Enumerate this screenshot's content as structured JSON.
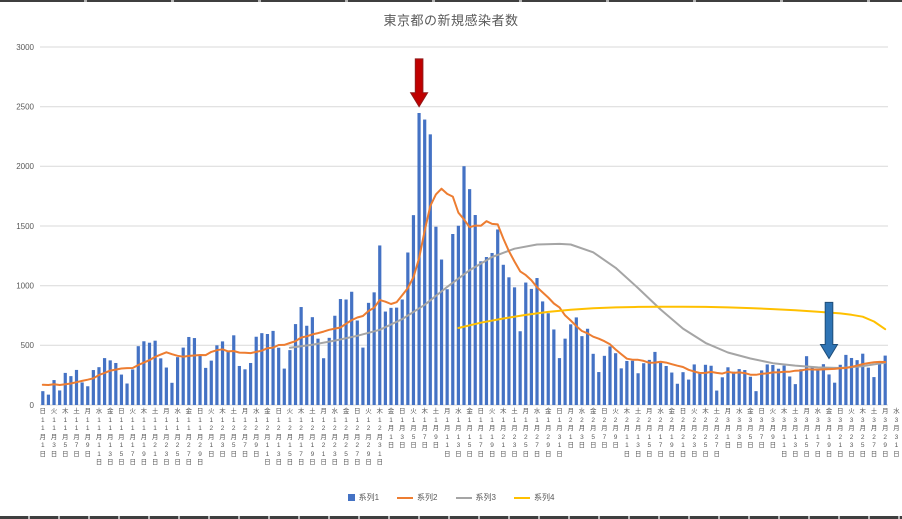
{
  "chart_data": {
    "type": "bar",
    "combo": "bar+line",
    "title": "東京都の新規感染者数",
    "xlabel": "",
    "ylabel": "",
    "ylim": [
      0,
      3000
    ],
    "y_ticks": [
      0,
      500,
      1000,
      1500,
      2000,
      2500,
      3000
    ],
    "gridline_color": "#D9D9D9",
    "axis_text_color": "#595959",
    "x_label_format": {
      "weekday_row": true,
      "month_suffix": "月",
      "day_suffix": "日",
      "label_every_days": 2
    },
    "x_labels": [
      [
        "日",
        11,
        1
      ],
      [
        "火",
        11,
        3
      ],
      [
        "木",
        11,
        5
      ],
      [
        "土",
        11,
        7
      ],
      [
        "月",
        11,
        9
      ],
      [
        "水",
        11,
        11
      ],
      [
        "金",
        11,
        13
      ],
      [
        "日",
        11,
        15
      ],
      [
        "火",
        11,
        17
      ],
      [
        "木",
        11,
        19
      ],
      [
        "土",
        11,
        21
      ],
      [
        "月",
        11,
        23
      ],
      [
        "水",
        11,
        25
      ],
      [
        "金",
        11,
        27
      ],
      [
        "日",
        11,
        29
      ],
      [
        "火",
        12,
        1
      ],
      [
        "木",
        12,
        3
      ],
      [
        "土",
        12,
        5
      ],
      [
        "月",
        12,
        7
      ],
      [
        "水",
        12,
        9
      ],
      [
        "金",
        12,
        11
      ],
      [
        "日",
        12,
        13
      ],
      [
        "火",
        12,
        15
      ],
      [
        "木",
        12,
        17
      ],
      [
        "土",
        12,
        19
      ],
      [
        "月",
        12,
        21
      ],
      [
        "水",
        12,
        23
      ],
      [
        "金",
        12,
        25
      ],
      [
        "日",
        12,
        27
      ],
      [
        "火",
        12,
        29
      ],
      [
        "木",
        12,
        31
      ],
      [
        "金",
        1,
        1
      ],
      [
        "日",
        1,
        3
      ],
      [
        "火",
        1,
        5
      ],
      [
        "木",
        1,
        7
      ],
      [
        "土",
        1,
        9
      ],
      [
        "月",
        1,
        11
      ],
      [
        "水",
        1,
        13
      ],
      [
        "金",
        1,
        15
      ],
      [
        "日",
        1,
        17
      ],
      [
        "火",
        1,
        19
      ],
      [
        "木",
        1,
        21
      ],
      [
        "土",
        1,
        23
      ],
      [
        "月",
        1,
        25
      ],
      [
        "水",
        1,
        27
      ],
      [
        "金",
        1,
        29
      ],
      [
        "日",
        1,
        31
      ],
      [
        "月",
        2,
        1
      ],
      [
        "水",
        2,
        3
      ],
      [
        "金",
        2,
        5
      ],
      [
        "日",
        2,
        7
      ],
      [
        "火",
        2,
        9
      ],
      [
        "木",
        2,
        11
      ],
      [
        "土",
        2,
        13
      ],
      [
        "月",
        2,
        15
      ],
      [
        "水",
        2,
        17
      ],
      [
        "金",
        2,
        19
      ],
      [
        "日",
        2,
        21
      ],
      [
        "火",
        2,
        23
      ],
      [
        "木",
        2,
        25
      ],
      [
        "土",
        2,
        27
      ],
      [
        "月",
        3,
        1
      ],
      [
        "水",
        3,
        3
      ],
      [
        "金",
        3,
        5
      ],
      [
        "日",
        3,
        7
      ],
      [
        "火",
        3,
        9
      ],
      [
        "木",
        3,
        11
      ],
      [
        "土",
        3,
        13
      ],
      [
        "月",
        3,
        15
      ],
      [
        "水",
        3,
        17
      ],
      [
        "金",
        3,
        19
      ],
      [
        "日",
        3,
        21
      ],
      [
        "火",
        3,
        23
      ],
      [
        "木",
        3,
        25
      ],
      [
        "土",
        3,
        27
      ],
      [
        "月",
        3,
        29
      ],
      [
        "水",
        3,
        31
      ]
    ],
    "series": [
      {
        "name": "系列1",
        "type": "bar",
        "color": "#4472C4",
        "values": [
          116,
          87,
          209,
          122,
          269,
          242,
          294,
          189,
          157,
          293,
          317,
          393,
          374,
          352,
          255,
          180,
          298,
          493,
          534,
          522,
          539,
          391,
          314,
          186,
          401,
          481,
          570,
          561,
          418,
          311,
          372,
          500,
          533,
          449,
          584,
          327,
          299,
          352,
          572,
          602,
          595,
          621,
          480,
          305,
          460,
          678,
          821,
          664,
          736,
          556,
          392,
          563,
          748,
          888,
          884,
          949,
          708,
          481,
          856,
          944,
          1337,
          783,
          814,
          816,
          884,
          1278,
          1591,
          2447,
          2392,
          2268,
          1494,
          1219,
          970,
          1433,
          1502,
          2001,
          1809,
          1592,
          1204,
          1240,
          1274,
          1471,
          1175,
          1070,
          986,
          618,
          1026,
          973,
          1064,
          868,
          769,
          633,
          393,
          556,
          676,
          734,
          577,
          639,
          429,
          276,
          412,
          491,
          434,
          307,
          369,
          371,
          266,
          350,
          378,
          445,
          353,
          327,
          272,
          178,
          275,
          213,
          340,
          270,
          337,
          329,
          121,
          232,
          316,
          279,
          301,
          293,
          237,
          116,
          290,
          340,
          335,
          304,
          330,
          239,
          175,
          300,
          409,
          323,
          303,
          342,
          256,
          187,
          337,
          420,
          394,
          376,
          430,
          313,
          234,
          364,
          414
        ]
      },
      {
        "name": "系列2",
        "type": "line",
        "color": "#ED7D31",
        "derivation": "7-day trailing moving average of 系列1",
        "seed_values_before_start": [
          124,
          102,
          158,
          171,
          221,
          204,
          215
        ]
      },
      {
        "name": "系列3",
        "type": "line",
        "color": "#A5A5A5",
        "points": [
          [
            44,
            480
          ],
          [
            48,
            505
          ],
          [
            52,
            540
          ],
          [
            56,
            580
          ],
          [
            60,
            630
          ],
          [
            64,
            720
          ],
          [
            68,
            840
          ],
          [
            72,
            990
          ],
          [
            76,
            1130
          ],
          [
            80,
            1240
          ],
          [
            84,
            1310
          ],
          [
            88,
            1345
          ],
          [
            92,
            1350
          ],
          [
            94,
            1345
          ],
          [
            98,
            1280
          ],
          [
            102,
            1150
          ],
          [
            106,
            980
          ],
          [
            110,
            800
          ],
          [
            114,
            640
          ],
          [
            118,
            520
          ],
          [
            122,
            440
          ],
          [
            126,
            390
          ],
          [
            130,
            350
          ],
          [
            134,
            330
          ],
          [
            138,
            315
          ],
          [
            142,
            310
          ],
          [
            146,
            325
          ],
          [
            150,
            355
          ]
        ]
      },
      {
        "name": "系列4",
        "type": "line",
        "color": "#FFC000",
        "points": [
          [
            74,
            645
          ],
          [
            78,
            690
          ],
          [
            82,
            725
          ],
          [
            86,
            755
          ],
          [
            90,
            780
          ],
          [
            94,
            798
          ],
          [
            98,
            810
          ],
          [
            102,
            818
          ],
          [
            106,
            822
          ],
          [
            110,
            824
          ],
          [
            114,
            824
          ],
          [
            118,
            822
          ],
          [
            122,
            818
          ],
          [
            126,
            812
          ],
          [
            130,
            804
          ],
          [
            134,
            794
          ],
          [
            138,
            782
          ],
          [
            142,
            768
          ],
          [
            144,
            756
          ],
          [
            146,
            740
          ],
          [
            148,
            700
          ],
          [
            150,
            635
          ]
        ]
      }
    ],
    "legend": {
      "position": "bottom",
      "items": [
        {
          "label": "系列1",
          "marker": "square",
          "color": "#4472C4"
        },
        {
          "label": "系列2",
          "marker": "line",
          "color": "#ED7D31"
        },
        {
          "label": "系列3",
          "marker": "line",
          "color": "#A5A5A5"
        },
        {
          "label": "系列4",
          "marker": "line",
          "color": "#FFC000"
        }
      ]
    },
    "annotations": [
      {
        "type": "down-arrow",
        "fill": "#C00000",
        "stroke": "#8E1B1B",
        "day_index": 67,
        "from_value": 2900,
        "to_value": 2500
      },
      {
        "type": "down-arrow",
        "fill": "#2E74B5",
        "stroke": "#1F4E79",
        "day_index": 140,
        "from_value": 860,
        "to_value": 390
      }
    ]
  }
}
